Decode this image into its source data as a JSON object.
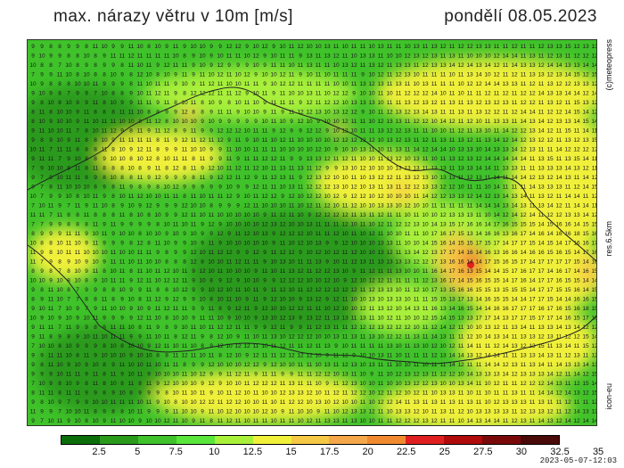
{
  "header": {
    "title": "max. nárazy větru v 10m [m/s]",
    "date": "pondělí 08.05.2023"
  },
  "side_labels": {
    "top": "(c)meteopress",
    "middle": "res.6.5km",
    "bottom": "icon-eu"
  },
  "footer": {
    "timestamp": "2023-05-07-12:03"
  },
  "legend": {
    "colors": [
      "#0b6e0b",
      "#2a9a1a",
      "#3fc22a",
      "#5ae63a",
      "#a8f03a",
      "#f0f03a",
      "#f5c845",
      "#f5a84a",
      "#f08a30",
      "#e02020",
      "#b00a0a",
      "#7a0a0a",
      "#4a0a0a"
    ],
    "ticks": [
      "2.5",
      "5",
      "7.5",
      "10",
      "12.5",
      "15",
      "17.5",
      "20",
      "22.5",
      "25",
      "27.5",
      "30",
      "32.5",
      "35"
    ]
  }
}
